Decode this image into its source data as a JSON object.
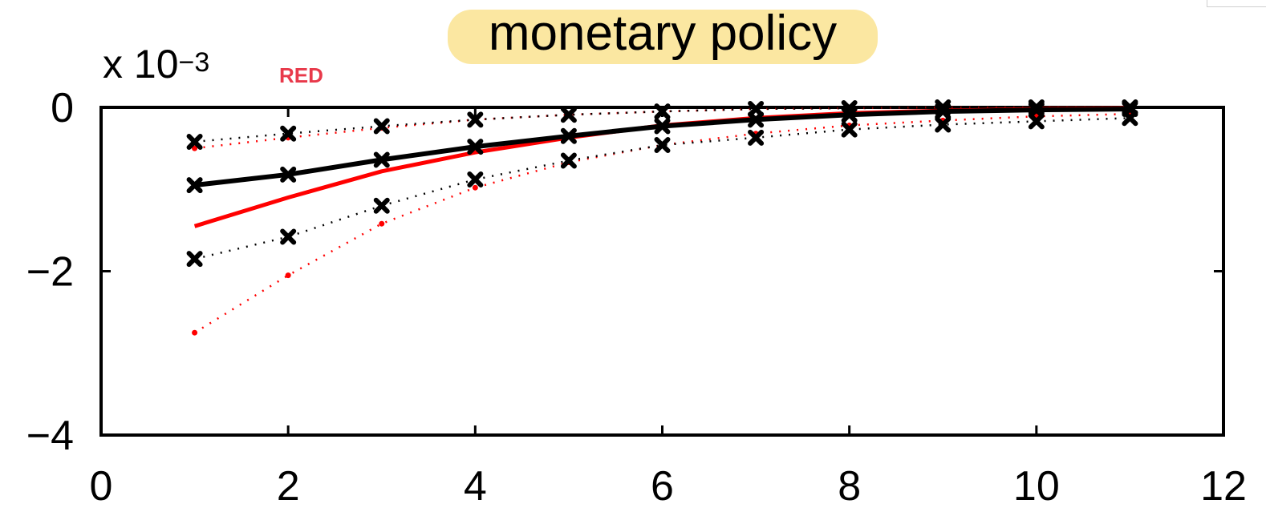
{
  "chart_data": {
    "type": "line",
    "title": "monetary policy",
    "scale_label": {
      "base": "x 10",
      "exponent": "−3"
    },
    "annotation": "RED",
    "xlim": [
      0,
      12
    ],
    "ylim": [
      -4,
      0
    ],
    "x_ticks": [
      "0",
      "2",
      "4",
      "6",
      "8",
      "10",
      "12"
    ],
    "y_ticks": [
      "0",
      "−2",
      "−4"
    ],
    "x": [
      1,
      2,
      3,
      4,
      5,
      6,
      7,
      8,
      9,
      10,
      11
    ],
    "series": [
      {
        "role": "black-median",
        "color": "#000000",
        "style": "solid",
        "marker": "x",
        "values": [
          -0.95,
          -0.82,
          -0.64,
          -0.48,
          -0.35,
          -0.23,
          -0.15,
          -0.09,
          -0.05,
          -0.03,
          -0.02
        ]
      },
      {
        "role": "black-upper-band",
        "color": "#000000",
        "style": "dotted",
        "marker": "x",
        "values": [
          -0.42,
          -0.32,
          -0.23,
          -0.15,
          -0.09,
          -0.05,
          -0.02,
          -0.01,
          0.0,
          0.0,
          0.0
        ]
      },
      {
        "role": "black-lower-band",
        "color": "#000000",
        "style": "dotted",
        "marker": "x",
        "values": [
          -1.85,
          -1.58,
          -1.2,
          -0.88,
          -0.65,
          -0.46,
          -0.37,
          -0.27,
          -0.21,
          -0.17,
          -0.13
        ]
      },
      {
        "role": "red-median",
        "color": "#ff0000",
        "style": "solid",
        "marker": "none",
        "values": [
          -1.45,
          -1.1,
          -0.78,
          -0.55,
          -0.37,
          -0.22,
          -0.13,
          -0.07,
          -0.04,
          -0.02,
          -0.01
        ]
      },
      {
        "role": "red-upper-band",
        "color": "#ff0000",
        "style": "dotted",
        "marker": "dot",
        "values": [
          -0.5,
          -0.37,
          -0.25,
          -0.15,
          -0.09,
          -0.05,
          -0.02,
          -0.01,
          0.0,
          0.0,
          0.0
        ]
      },
      {
        "role": "red-lower-band",
        "color": "#ff0000",
        "style": "dotted",
        "marker": "dot",
        "values": [
          -2.75,
          -2.05,
          -1.42,
          -0.98,
          -0.67,
          -0.46,
          -0.32,
          -0.22,
          -0.16,
          -0.11,
          -0.08
        ]
      }
    ],
    "grid": false,
    "legend": "none"
  }
}
